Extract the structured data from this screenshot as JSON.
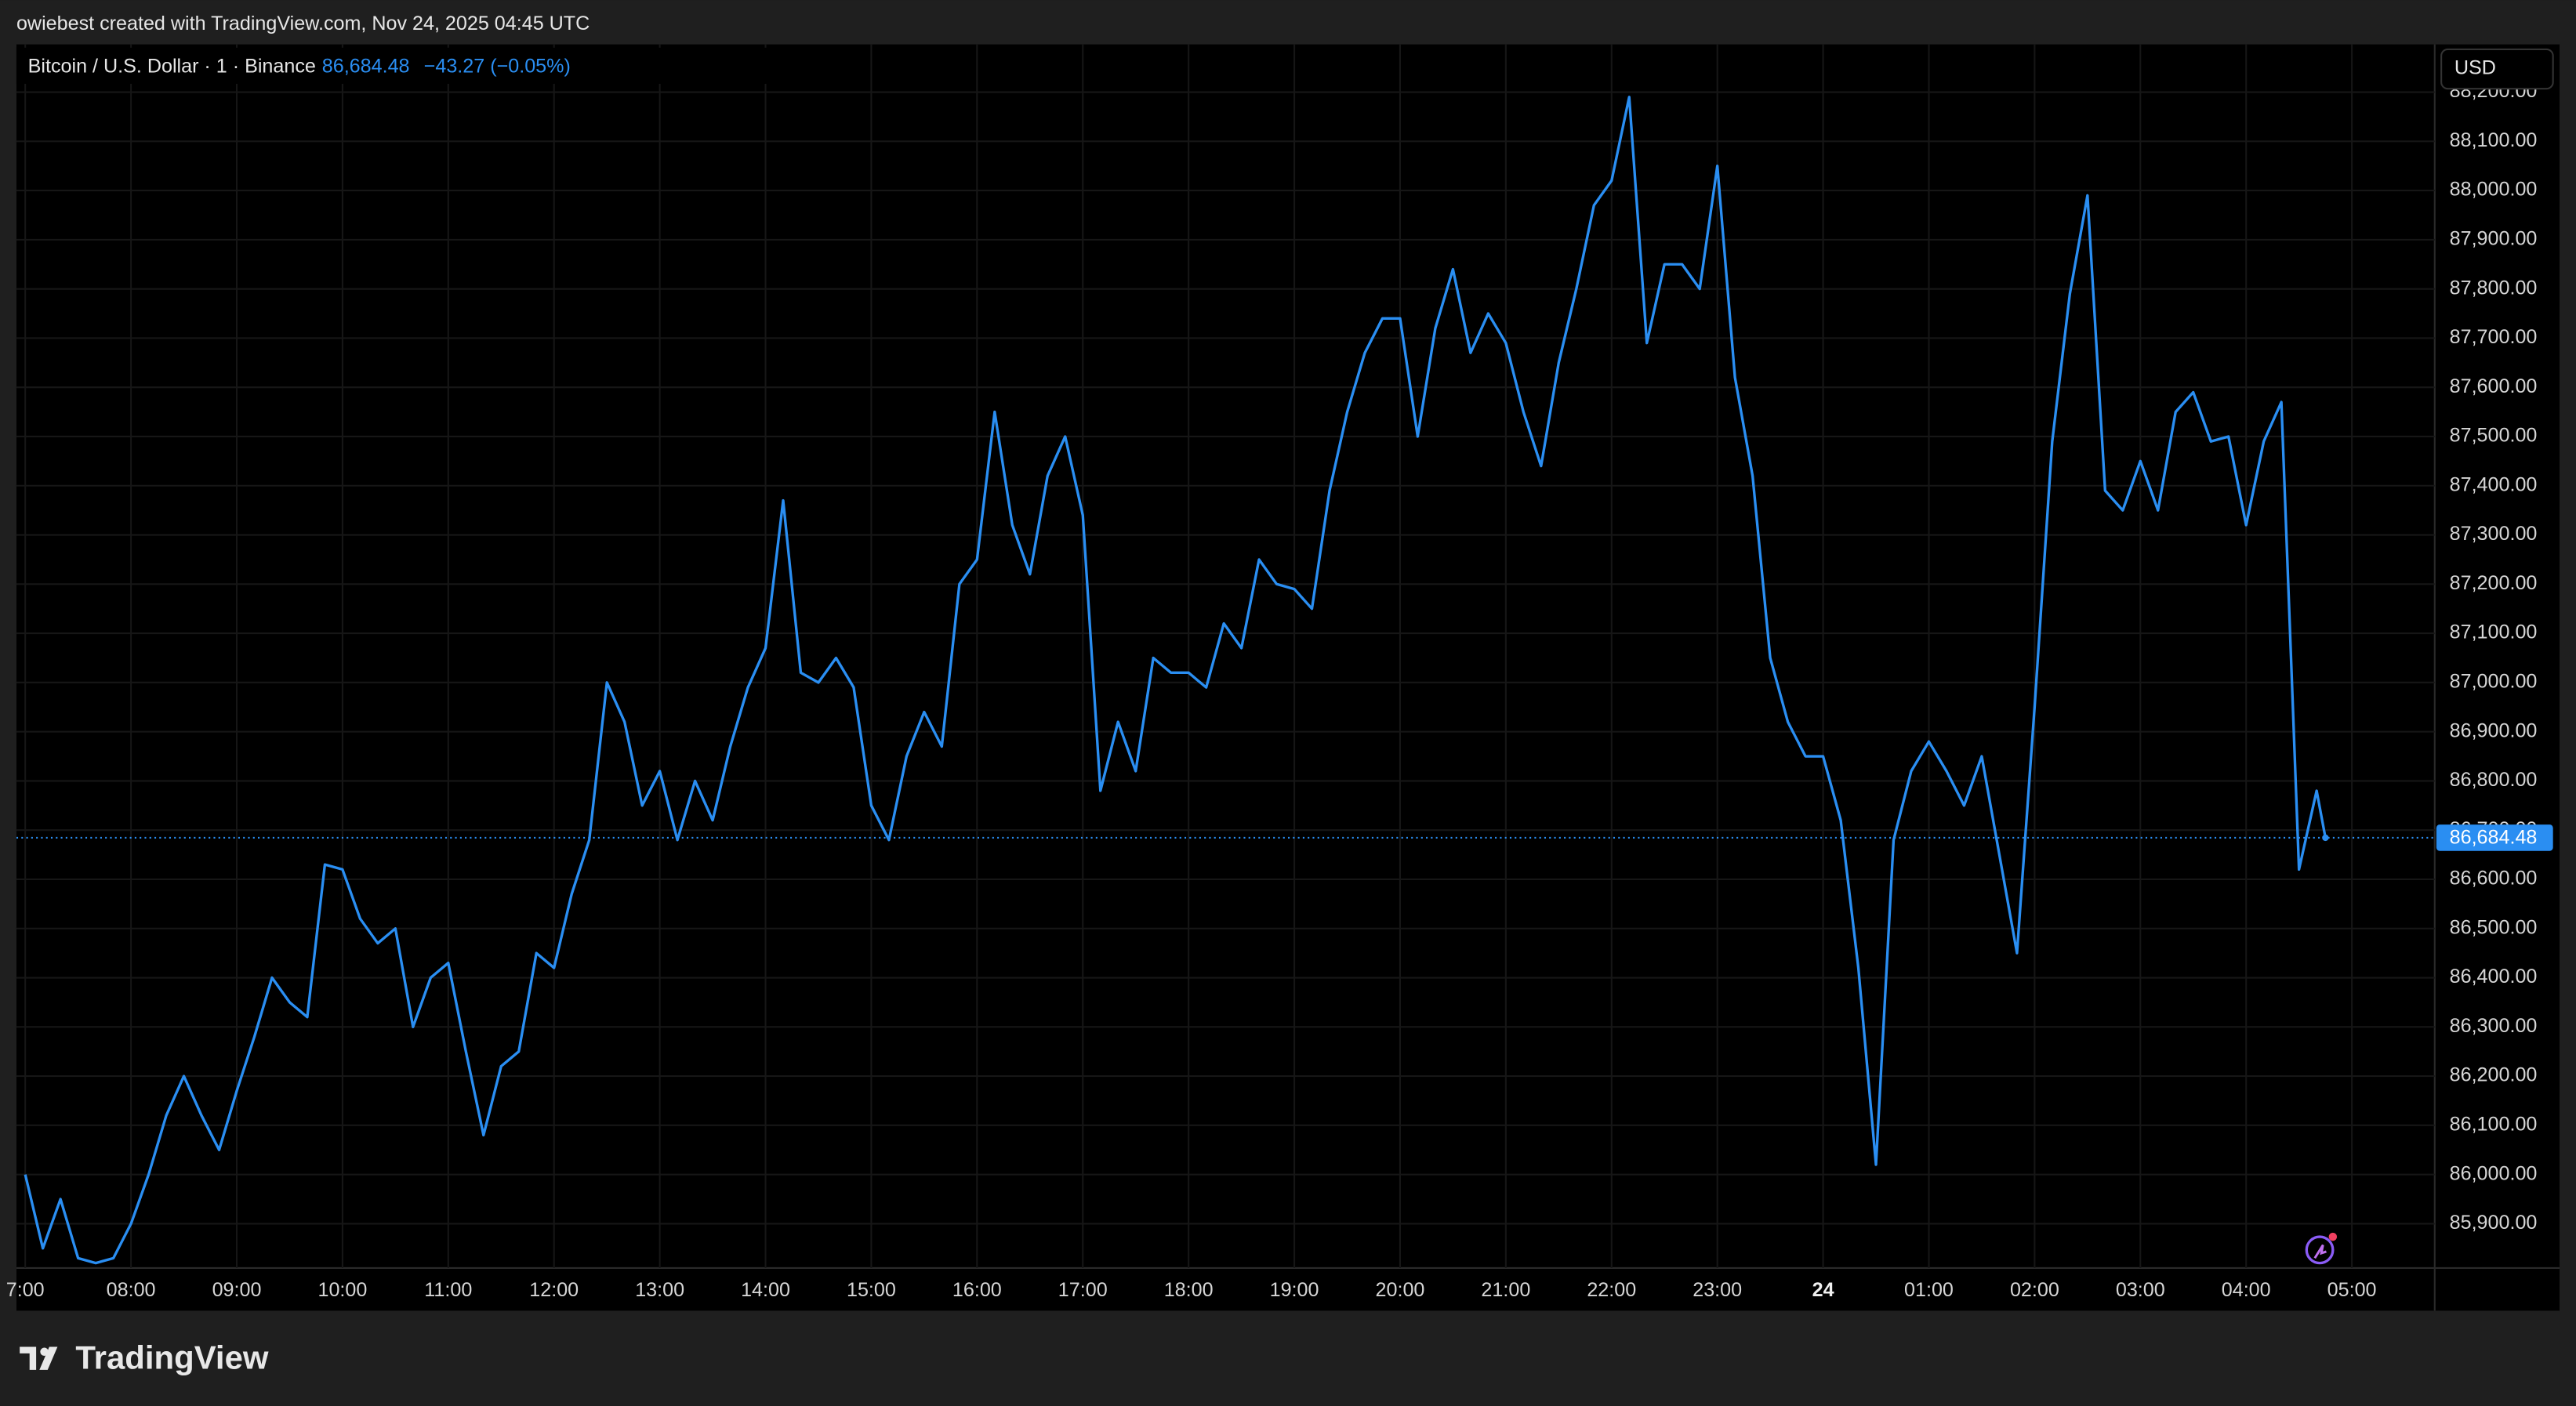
{
  "credit": "owiebest created with TradingView.com, Nov 24, 2025 04:45 UTC",
  "brand": "TradingView",
  "chart_data": {
    "type": "line",
    "title": "Bitcoin / U.S. Dollar · 1 · Binance",
    "last_price": {
      "value": 86684.48,
      "label": "86,684.48"
    },
    "change": "−43.27 (−0.05%)",
    "currency": "USD",
    "color": "#2a8ef2",
    "grid": true,
    "x": [
      420,
      430,
      440,
      450,
      460,
      470,
      480,
      490,
      500,
      510,
      520,
      530,
      540,
      550,
      560,
      570,
      580,
      590,
      600,
      610,
      620,
      630,
      640,
      650,
      660,
      670,
      680,
      690,
      700,
      710,
      720,
      730,
      740,
      750,
      760,
      770,
      780,
      790,
      800,
      810,
      820,
      830,
      840,
      850,
      860,
      870,
      880,
      890,
      900,
      910,
      920,
      930,
      940,
      950,
      960,
      970,
      980,
      990,
      1000,
      1010,
      1020,
      1030,
      1040,
      1050,
      1060,
      1070,
      1080,
      1090,
      1100,
      1110,
      1120,
      1130,
      1140,
      1150,
      1160,
      1170,
      1180,
      1190,
      1200,
      1210,
      1220,
      1230,
      1240,
      1250,
      1260,
      1270,
      1280,
      1290,
      1300,
      1310,
      1320,
      1330,
      1340,
      1350,
      1360,
      1370,
      1380,
      1390,
      1400,
      1410,
      1420,
      1430,
      1440,
      1450,
      1460,
      1470,
      1480,
      1490,
      1500,
      1510,
      1520,
      1530,
      1540,
      1550,
      1560,
      1570,
      1580,
      1590,
      1600,
      1610,
      1620,
      1630,
      1640,
      1650,
      1660,
      1670,
      1680,
      1690,
      1700,
      1710,
      1720,
      1725
    ],
    "values": [
      86000,
      85850,
      85950,
      85830,
      85820,
      85830,
      85900,
      86000,
      86120,
      86200,
      86120,
      86050,
      86170,
      86280,
      86400,
      86350,
      86320,
      86630,
      86620,
      86520,
      86470,
      86500,
      86300,
      86400,
      86430,
      86250,
      86080,
      86220,
      86250,
      86450,
      86420,
      86570,
      86680,
      87000,
      86920,
      86750,
      86820,
      86680,
      86800,
      86720,
      86870,
      86990,
      87070,
      87370,
      87020,
      87000,
      87050,
      86990,
      86750,
      86680,
      86850,
      86940,
      86870,
      87200,
      87250,
      87550,
      87320,
      87220,
      87420,
      87500,
      87340,
      86780,
      86920,
      86820,
      87050,
      87020,
      87020,
      86990,
      87120,
      87070,
      87250,
      87200,
      87190,
      87150,
      87390,
      87550,
      87670,
      87740,
      87740,
      87500,
      87720,
      87840,
      87670,
      87750,
      87690,
      87550,
      87440,
      87650,
      87800,
      87970,
      88020,
      88190,
      87690,
      87850,
      87850,
      87800,
      88050,
      87620,
      87420,
      87050,
      86920,
      86850,
      86850,
      86720,
      86420,
      86020,
      86680,
      86820,
      86880,
      86820,
      86750,
      86850,
      86650,
      86450,
      86950,
      87490,
      87790,
      87990,
      87390,
      87350,
      87450,
      87350,
      87550,
      87590,
      87490,
      87500,
      87320,
      87490,
      87570,
      86620,
      86780,
      86684.48
    ],
    "xlim": [
      415,
      1787
    ],
    "ylim": [
      85810,
      88297
    ],
    "xticks": [
      {
        "value": 420,
        "label": "7:00"
      },
      {
        "value": 480,
        "label": "08:00"
      },
      {
        "value": 540,
        "label": "09:00"
      },
      {
        "value": 600,
        "label": "10:00"
      },
      {
        "value": 660,
        "label": "11:00"
      },
      {
        "value": 720,
        "label": "12:00"
      },
      {
        "value": 780,
        "label": "13:00"
      },
      {
        "value": 840,
        "label": "14:00"
      },
      {
        "value": 900,
        "label": "15:00"
      },
      {
        "value": 960,
        "label": "16:00"
      },
      {
        "value": 1020,
        "label": "17:00"
      },
      {
        "value": 1080,
        "label": "18:00"
      },
      {
        "value": 1140,
        "label": "19:00"
      },
      {
        "value": 1200,
        "label": "20:00"
      },
      {
        "value": 1260,
        "label": "21:00"
      },
      {
        "value": 1320,
        "label": "22:00"
      },
      {
        "value": 1380,
        "label": "23:00"
      },
      {
        "value": 1440,
        "label": "24"
      },
      {
        "value": 1500,
        "label": "01:00"
      },
      {
        "value": 1560,
        "label": "02:00"
      },
      {
        "value": 1620,
        "label": "03:00"
      },
      {
        "value": 1680,
        "label": "04:00"
      },
      {
        "value": 1740,
        "label": "05:00"
      }
    ],
    "yticks": [
      {
        "value": 85900,
        "label": "85,900.00"
      },
      {
        "value": 86000,
        "label": "86,000.00"
      },
      {
        "value": 86100,
        "label": "86,100.00"
      },
      {
        "value": 86200,
        "label": "86,200.00"
      },
      {
        "value": 86300,
        "label": "86,300.00"
      },
      {
        "value": 86400,
        "label": "86,400.00"
      },
      {
        "value": 86500,
        "label": "86,500.00"
      },
      {
        "value": 86600,
        "label": "86,600.00"
      },
      {
        "value": 86700,
        "label": "86,700.00"
      },
      {
        "value": 86800,
        "label": "86,800.00"
      },
      {
        "value": 86900,
        "label": "86,900.00"
      },
      {
        "value": 87000,
        "label": "87,000.00"
      },
      {
        "value": 87100,
        "label": "87,100.00"
      },
      {
        "value": 87200,
        "label": "87,200.00"
      },
      {
        "value": 87300,
        "label": "87,300.00"
      },
      {
        "value": 87400,
        "label": "87,400.00"
      },
      {
        "value": 87500,
        "label": "87,500.00"
      },
      {
        "value": 87600,
        "label": "87,600.00"
      },
      {
        "value": 87700,
        "label": "87,700.00"
      },
      {
        "value": 87800,
        "label": "87,800.00"
      },
      {
        "value": 87900,
        "label": "87,900.00"
      },
      {
        "value": 88000,
        "label": "88,000.00"
      },
      {
        "value": 88100,
        "label": "88,100.00"
      },
      {
        "value": 88200,
        "label": "88,200.00"
      }
    ]
  }
}
